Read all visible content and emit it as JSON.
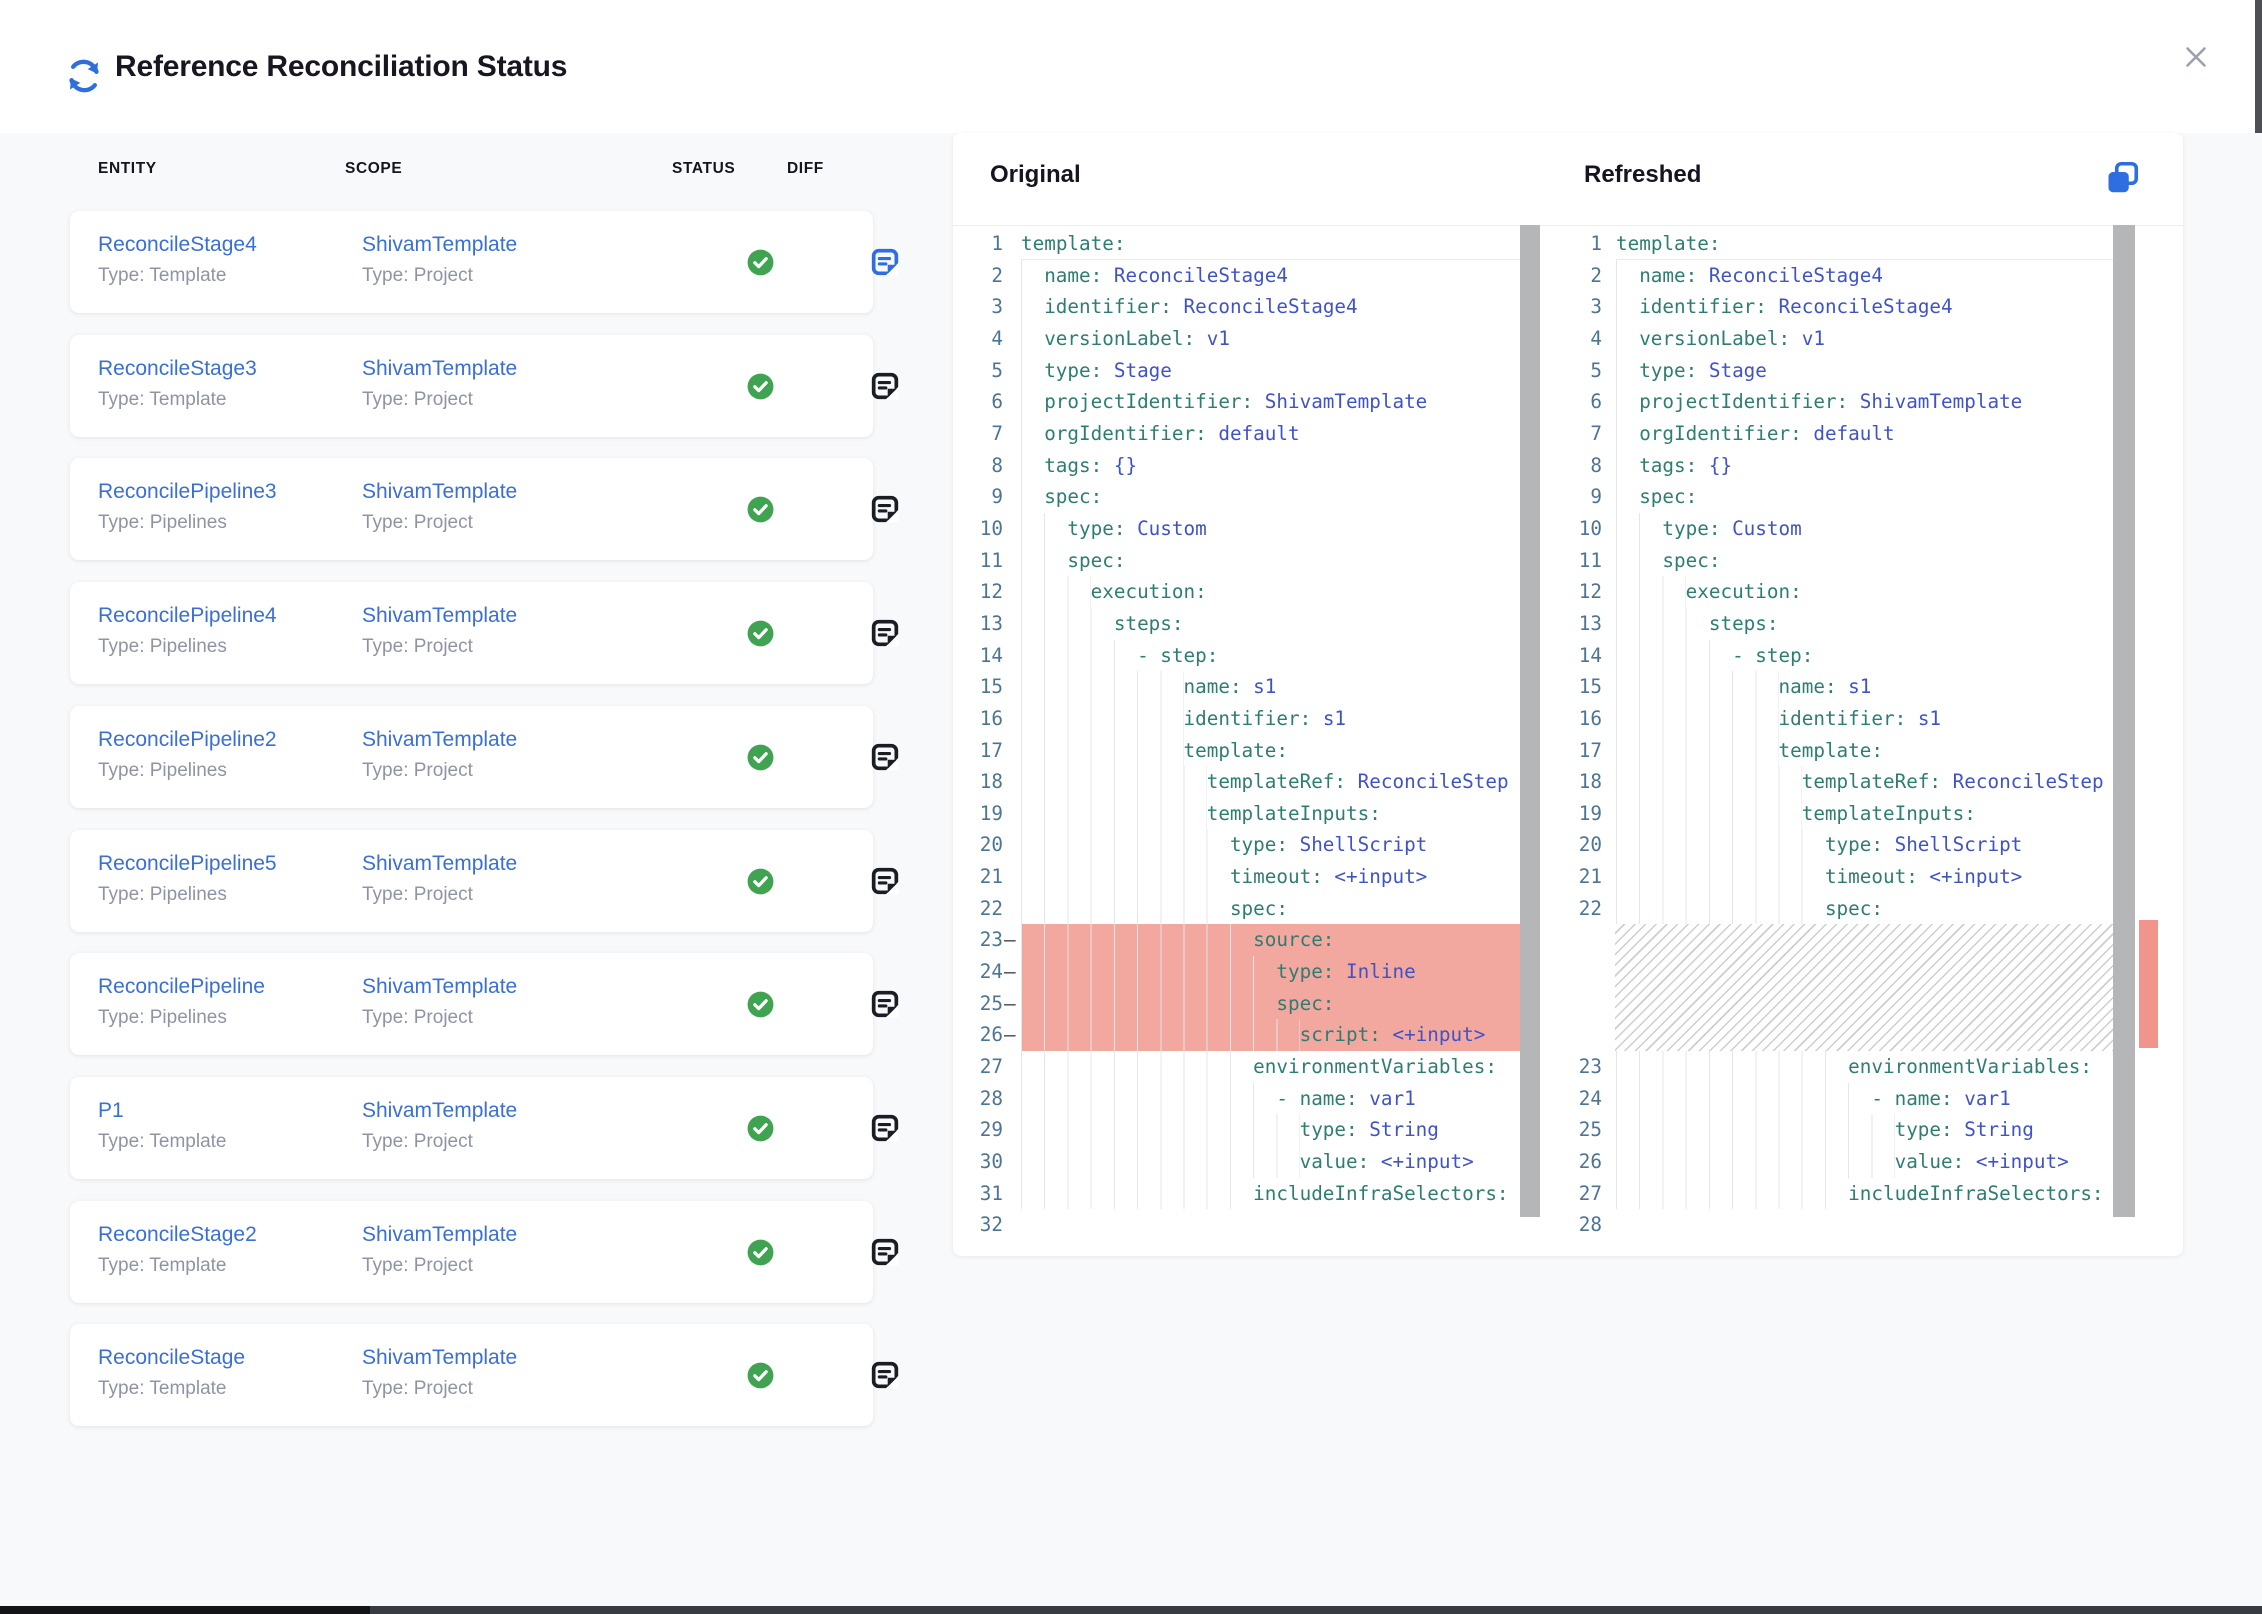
{
  "header": {
    "title": "Reference Reconciliation Status"
  },
  "table": {
    "columns": [
      "ENTITY",
      "SCOPE",
      "STATUS",
      "DIFF"
    ],
    "rows": [
      {
        "entity": "ReconcileStage4",
        "entity_type": "Type: Template",
        "scope": "ShivamTemplate",
        "scope_type": "Type: Project",
        "status": "success",
        "diff_active": true
      },
      {
        "entity": "ReconcileStage3",
        "entity_type": "Type: Template",
        "scope": "ShivamTemplate",
        "scope_type": "Type: Project",
        "status": "success",
        "diff_active": false
      },
      {
        "entity": "ReconcilePipeline3",
        "entity_type": "Type: Pipelines",
        "scope": "ShivamTemplate",
        "scope_type": "Type: Project",
        "status": "success",
        "diff_active": false
      },
      {
        "entity": "ReconcilePipeline4",
        "entity_type": "Type: Pipelines",
        "scope": "ShivamTemplate",
        "scope_type": "Type: Project",
        "status": "success",
        "diff_active": false
      },
      {
        "entity": "ReconcilePipeline2",
        "entity_type": "Type: Pipelines",
        "scope": "ShivamTemplate",
        "scope_type": "Type: Project",
        "status": "success",
        "diff_active": false
      },
      {
        "entity": "ReconcilePipeline5",
        "entity_type": "Type: Pipelines",
        "scope": "ShivamTemplate",
        "scope_type": "Type: Project",
        "status": "success",
        "diff_active": false
      },
      {
        "entity": "ReconcilePipeline",
        "entity_type": "Type: Pipelines",
        "scope": "ShivamTemplate",
        "scope_type": "Type: Project",
        "status": "success",
        "diff_active": false
      },
      {
        "entity": "P1",
        "entity_type": "Type: Template",
        "scope": "ShivamTemplate",
        "scope_type": "Type: Project",
        "status": "success",
        "diff_active": false
      },
      {
        "entity": "ReconcileStage2",
        "entity_type": "Type: Template",
        "scope": "ShivamTemplate",
        "scope_type": "Type: Project",
        "status": "success",
        "diff_active": false
      },
      {
        "entity": "ReconcileStage",
        "entity_type": "Type: Template",
        "scope": "ShivamTemplate",
        "scope_type": "Type: Project",
        "status": "success",
        "diff_active": false
      }
    ]
  },
  "diff": {
    "original_label": "Original",
    "refreshed_label": "Refreshed",
    "original_lines": [
      {
        "n": 1,
        "i": 0,
        "k": "template:",
        "cur": true
      },
      {
        "n": 2,
        "i": 2,
        "k": "name:",
        "v": "ReconcileStage4"
      },
      {
        "n": 3,
        "i": 2,
        "k": "identifier:",
        "v": "ReconcileStage4"
      },
      {
        "n": 4,
        "i": 2,
        "k": "versionLabel:",
        "v": "v1"
      },
      {
        "n": 5,
        "i": 2,
        "k": "type:",
        "v": "Stage"
      },
      {
        "n": 6,
        "i": 2,
        "k": "projectIdentifier:",
        "v": "ShivamTemplate"
      },
      {
        "n": 7,
        "i": 2,
        "k": "orgIdentifier:",
        "v": "default"
      },
      {
        "n": 8,
        "i": 2,
        "k": "tags:",
        "v": "{}"
      },
      {
        "n": 9,
        "i": 2,
        "k": "spec:"
      },
      {
        "n": 10,
        "i": 4,
        "k": "type:",
        "v": "Custom"
      },
      {
        "n": 11,
        "i": 4,
        "k": "spec:"
      },
      {
        "n": 12,
        "i": 6,
        "k": "execution:"
      },
      {
        "n": 13,
        "i": 8,
        "k": "steps:"
      },
      {
        "n": 14,
        "i": 10,
        "d": "- ",
        "k": "step:"
      },
      {
        "n": 15,
        "i": 14,
        "k": "name:",
        "v": "s1"
      },
      {
        "n": 16,
        "i": 14,
        "k": "identifier:",
        "v": "s1"
      },
      {
        "n": 17,
        "i": 14,
        "k": "template:"
      },
      {
        "n": 18,
        "i": 16,
        "k": "templateRef:",
        "v": "ReconcileStep"
      },
      {
        "n": 19,
        "i": 16,
        "k": "templateInputs:"
      },
      {
        "n": 20,
        "i": 18,
        "k": "type:",
        "v": "ShellScript"
      },
      {
        "n": 21,
        "i": 18,
        "k": "timeout:",
        "v": "<+input>"
      },
      {
        "n": 22,
        "i": 18,
        "k": "spec:"
      },
      {
        "n": 23,
        "i": 20,
        "k": "source:",
        "del": true
      },
      {
        "n": 24,
        "i": 22,
        "k": "type:",
        "v": "Inline",
        "del": true
      },
      {
        "n": 25,
        "i": 22,
        "k": "spec:",
        "del": true
      },
      {
        "n": 26,
        "i": 24,
        "k": "script:",
        "v": "<+input>",
        "del": true
      },
      {
        "n": 27,
        "i": 20,
        "k": "environmentVariables:"
      },
      {
        "n": 28,
        "i": 22,
        "d": "- ",
        "k": "name:",
        "v": "var1"
      },
      {
        "n": 29,
        "i": 24,
        "k": "type:",
        "v": "String"
      },
      {
        "n": 30,
        "i": 24,
        "k": "value:",
        "v": "<+input>"
      },
      {
        "n": 31,
        "i": 20,
        "k": "includeInfraSelectors:"
      },
      {
        "n": 32,
        "i": 0,
        "k": ""
      }
    ],
    "refreshed_lines": [
      {
        "n": 1,
        "i": 0,
        "k": "template:",
        "cur": true
      },
      {
        "n": 2,
        "i": 2,
        "k": "name:",
        "v": "ReconcileStage4"
      },
      {
        "n": 3,
        "i": 2,
        "k": "identifier:",
        "v": "ReconcileStage4"
      },
      {
        "n": 4,
        "i": 2,
        "k": "versionLabel:",
        "v": "v1"
      },
      {
        "n": 5,
        "i": 2,
        "k": "type:",
        "v": "Stage"
      },
      {
        "n": 6,
        "i": 2,
        "k": "projectIdentifier:",
        "v": "ShivamTemplate"
      },
      {
        "n": 7,
        "i": 2,
        "k": "orgIdentifier:",
        "v": "default"
      },
      {
        "n": 8,
        "i": 2,
        "k": "tags:",
        "v": "{}"
      },
      {
        "n": 9,
        "i": 2,
        "k": "spec:"
      },
      {
        "n": 10,
        "i": 4,
        "k": "type:",
        "v": "Custom"
      },
      {
        "n": 11,
        "i": 4,
        "k": "spec:"
      },
      {
        "n": 12,
        "i": 6,
        "k": "execution:"
      },
      {
        "n": 13,
        "i": 8,
        "k": "steps:"
      },
      {
        "n": 14,
        "i": 10,
        "d": "- ",
        "k": "step:"
      },
      {
        "n": 15,
        "i": 14,
        "k": "name:",
        "v": "s1"
      },
      {
        "n": 16,
        "i": 14,
        "k": "identifier:",
        "v": "s1"
      },
      {
        "n": 17,
        "i": 14,
        "k": "template:"
      },
      {
        "n": 18,
        "i": 16,
        "k": "templateRef:",
        "v": "ReconcileStep"
      },
      {
        "n": 19,
        "i": 16,
        "k": "templateInputs:"
      },
      {
        "n": 20,
        "i": 18,
        "k": "type:",
        "v": "ShellScript"
      },
      {
        "n": 21,
        "i": 18,
        "k": "timeout:",
        "v": "<+input>"
      },
      {
        "n": 22,
        "i": 18,
        "k": "spec:"
      },
      {
        "gap": true
      },
      {
        "n": 23,
        "i": 20,
        "k": "environmentVariables:"
      },
      {
        "n": 24,
        "i": 22,
        "d": "- ",
        "k": "name:",
        "v": "var1"
      },
      {
        "n": 25,
        "i": 24,
        "k": "type:",
        "v": "String"
      },
      {
        "n": 26,
        "i": 24,
        "k": "value:",
        "v": "<+input>"
      },
      {
        "n": 27,
        "i": 20,
        "k": "includeInfraSelectors:"
      },
      {
        "n": 28,
        "i": 0,
        "k": ""
      }
    ]
  },
  "icons": {
    "title": "refresh-sync-icon",
    "close": "close-icon",
    "status": "check-circle-icon",
    "diff": "diff-note-icon",
    "copy": "copy-icon"
  },
  "colors": {
    "accent_blue": "#2e6ee0",
    "link_blue": "#3a6fd3",
    "success_green": "#3fa351",
    "yaml_key_teal": "#2e7d72",
    "yaml_value_blue": "#4053c5",
    "line_number_blue": "#4d7493",
    "deleted_line_red": "#f2a79f",
    "diff_ruler_red": "#f0948c"
  }
}
